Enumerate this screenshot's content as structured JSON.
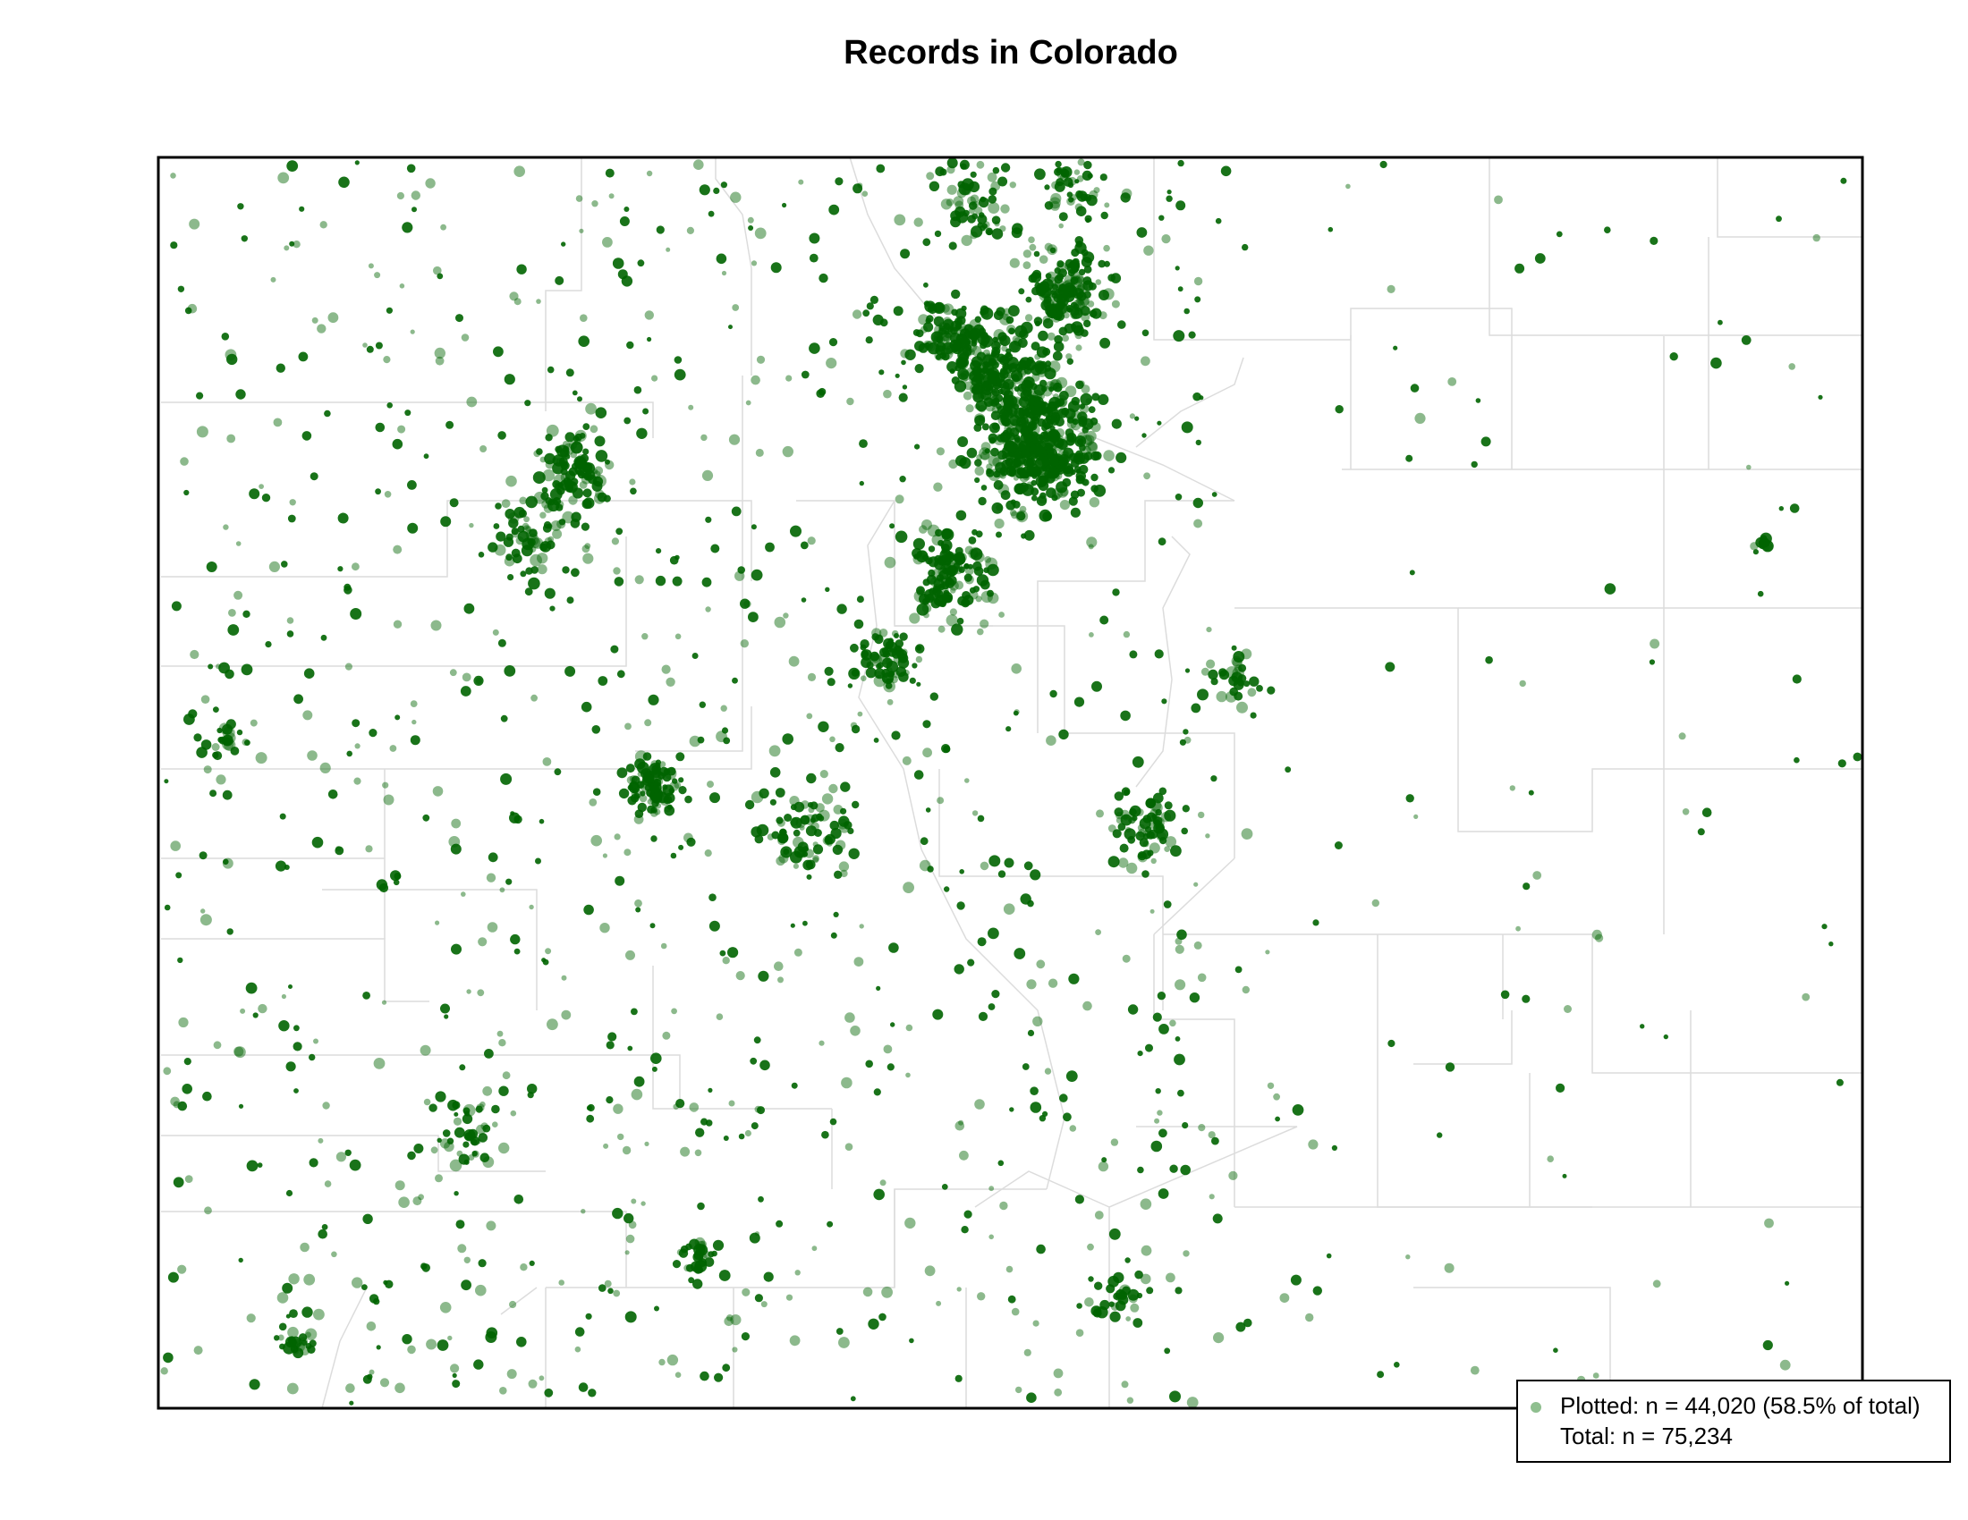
{
  "title": "Records in Colorado",
  "legend": {
    "plotted": "Plotted: n = 44,020 (58.5% of total)",
    "total": "Total: n = 75,234",
    "marker_color": "#8fbf8f"
  },
  "colors": {
    "point": "#006400",
    "state_border": "#000000",
    "county_border": "#dcdcdc"
  }
}
